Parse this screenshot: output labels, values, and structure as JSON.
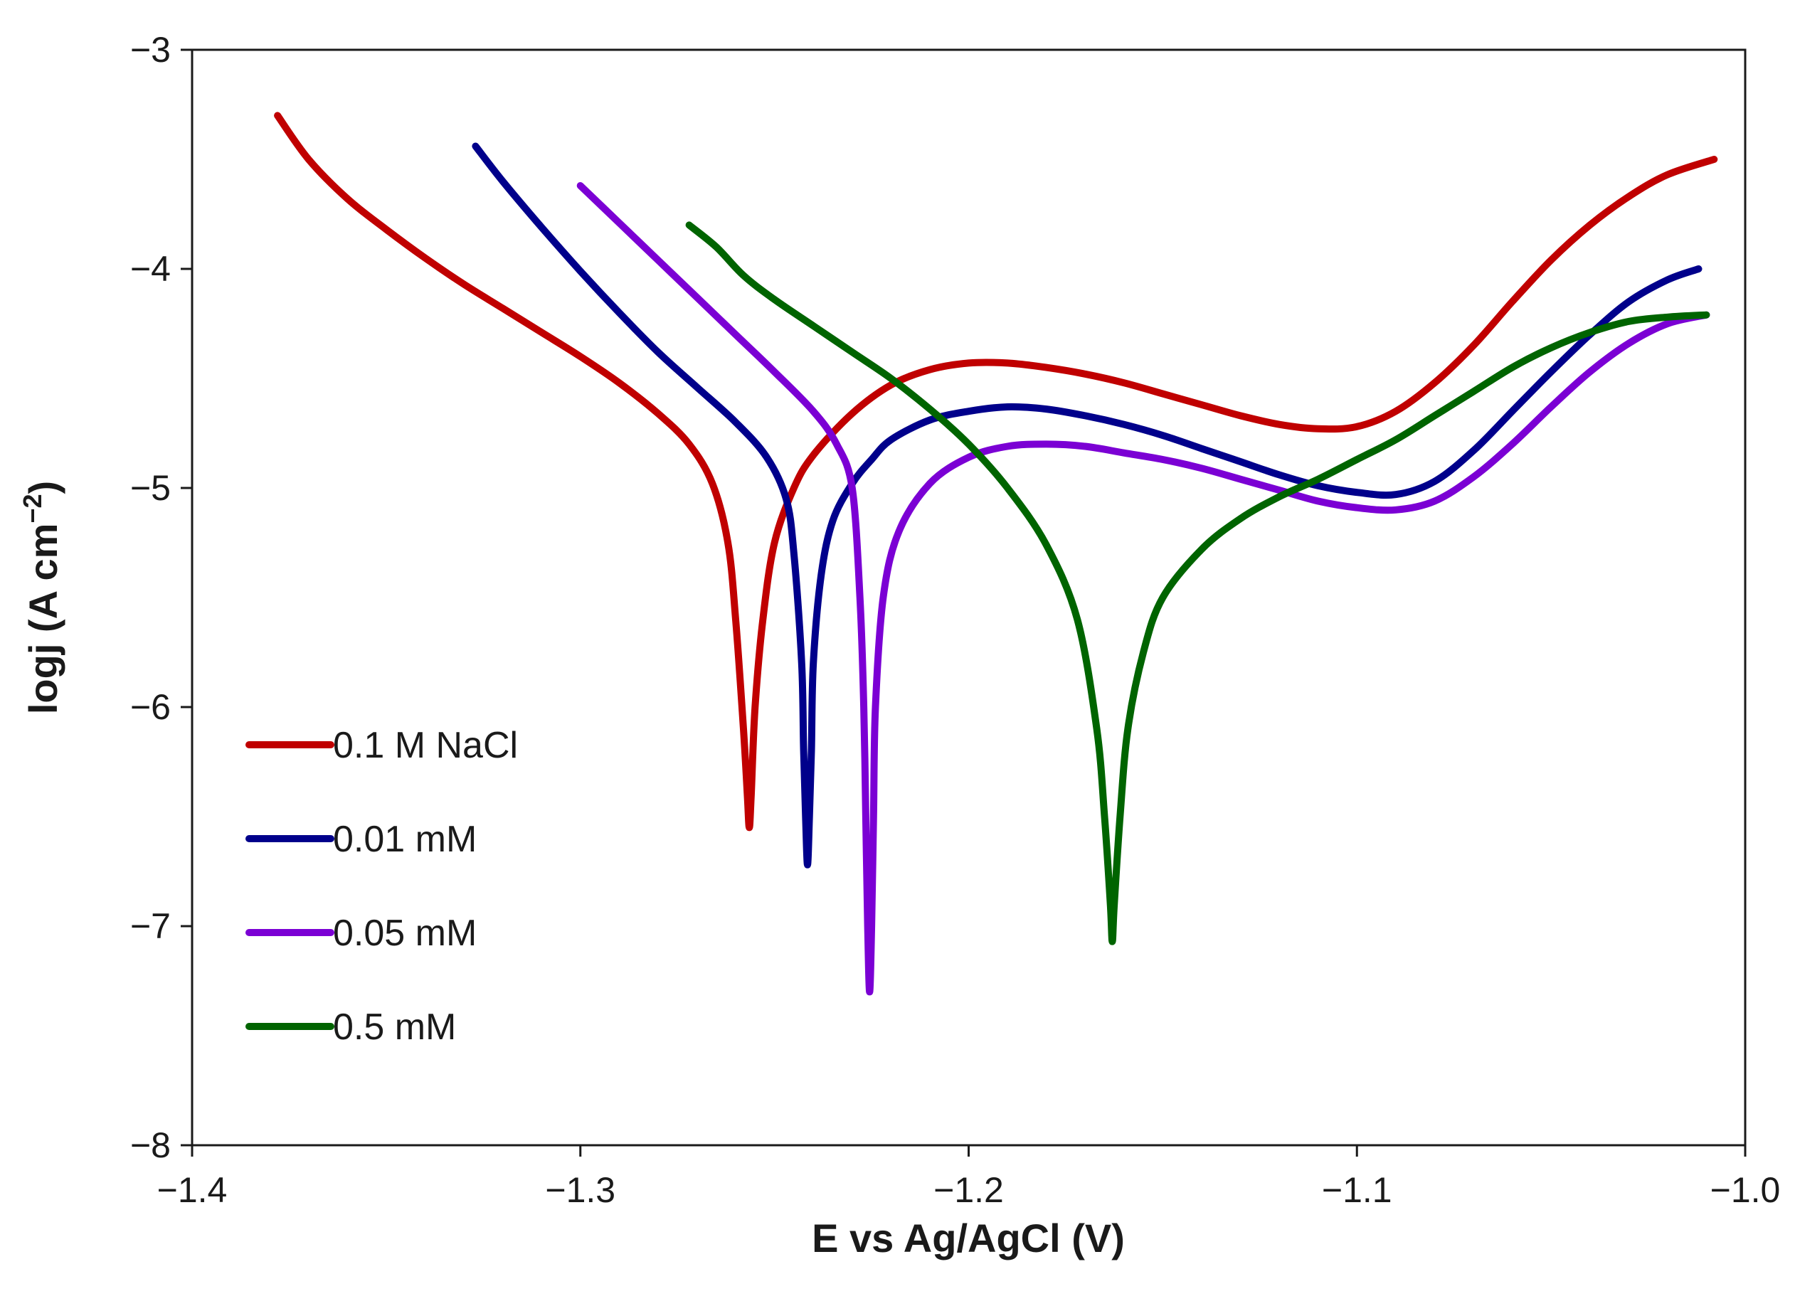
{
  "chart_data": {
    "type": "line",
    "title": "",
    "xlabel": "E vs Ag/AgCl  (V)",
    "ylabel_main": "logj (A cm",
    "ylabel_sup": "−2",
    "ylabel_close": ")",
    "xlim": [
      -1.4,
      -1.0
    ],
    "ylim": [
      -8,
      -3
    ],
    "x_ticks": [
      -1.4,
      -1.3,
      -1.2,
      -1.1,
      -1.0
    ],
    "x_tick_labels": [
      "−1.4",
      "−1.3",
      "−1.2",
      "−1.1",
      "−1.0"
    ],
    "y_ticks": [
      -3,
      -4,
      -5,
      -6,
      -7,
      -8
    ],
    "y_tick_labels": [
      "−3",
      "−4",
      "−5",
      "−6",
      "−7",
      "−8"
    ],
    "grid": false,
    "legend_position": "bottom-left",
    "series": [
      {
        "name": "0.1 M NaCl",
        "color": "#c00000",
        "points": [
          [
            -1.378,
            -3.3
          ],
          [
            -1.37,
            -3.5
          ],
          [
            -1.36,
            -3.68
          ],
          [
            -1.35,
            -3.82
          ],
          [
            -1.34,
            -3.95
          ],
          [
            -1.33,
            -4.07
          ],
          [
            -1.32,
            -4.18
          ],
          [
            -1.31,
            -4.29
          ],
          [
            -1.3,
            -4.4
          ],
          [
            -1.29,
            -4.52
          ],
          [
            -1.28,
            -4.66
          ],
          [
            -1.272,
            -4.8
          ],
          [
            -1.266,
            -4.98
          ],
          [
            -1.262,
            -5.25
          ],
          [
            -1.26,
            -5.6
          ],
          [
            -1.258,
            -6.1
          ],
          [
            -1.257,
            -6.4
          ],
          [
            -1.2565,
            -6.55
          ],
          [
            -1.256,
            -6.4
          ],
          [
            -1.255,
            -6.0
          ],
          [
            -1.253,
            -5.6
          ],
          [
            -1.25,
            -5.25
          ],
          [
            -1.245,
            -5.0
          ],
          [
            -1.24,
            -4.85
          ],
          [
            -1.23,
            -4.66
          ],
          [
            -1.22,
            -4.53
          ],
          [
            -1.21,
            -4.46
          ],
          [
            -1.2,
            -4.43
          ],
          [
            -1.19,
            -4.43
          ],
          [
            -1.18,
            -4.45
          ],
          [
            -1.17,
            -4.48
          ],
          [
            -1.16,
            -4.52
          ],
          [
            -1.15,
            -4.57
          ],
          [
            -1.14,
            -4.62
          ],
          [
            -1.13,
            -4.67
          ],
          [
            -1.12,
            -4.71
          ],
          [
            -1.11,
            -4.73
          ],
          [
            -1.1,
            -4.72
          ],
          [
            -1.09,
            -4.65
          ],
          [
            -1.08,
            -4.52
          ],
          [
            -1.07,
            -4.35
          ],
          [
            -1.06,
            -4.15
          ],
          [
            -1.05,
            -3.96
          ],
          [
            -1.04,
            -3.8
          ],
          [
            -1.03,
            -3.67
          ],
          [
            -1.02,
            -3.57
          ],
          [
            -1.008,
            -3.5
          ]
        ]
      },
      {
        "name": "0.01 mM",
        "color": "#00008b",
        "points": [
          [
            -1.327,
            -3.44
          ],
          [
            -1.32,
            -3.6
          ],
          [
            -1.31,
            -3.81
          ],
          [
            -1.3,
            -4.01
          ],
          [
            -1.29,
            -4.2
          ],
          [
            -1.28,
            -4.38
          ],
          [
            -1.27,
            -4.54
          ],
          [
            -1.26,
            -4.7
          ],
          [
            -1.252,
            -4.86
          ],
          [
            -1.247,
            -5.05
          ],
          [
            -1.245,
            -5.3
          ],
          [
            -1.243,
            -5.8
          ],
          [
            -1.2425,
            -6.2
          ],
          [
            -1.242,
            -6.5
          ],
          [
            -1.2415,
            -6.72
          ],
          [
            -1.241,
            -6.5
          ],
          [
            -1.2405,
            -6.2
          ],
          [
            -1.24,
            -5.8
          ],
          [
            -1.238,
            -5.4
          ],
          [
            -1.235,
            -5.15
          ],
          [
            -1.23,
            -4.98
          ],
          [
            -1.225,
            -4.87
          ],
          [
            -1.22,
            -4.78
          ],
          [
            -1.21,
            -4.69
          ],
          [
            -1.2,
            -4.65
          ],
          [
            -1.19,
            -4.63
          ],
          [
            -1.18,
            -4.64
          ],
          [
            -1.17,
            -4.67
          ],
          [
            -1.16,
            -4.71
          ],
          [
            -1.15,
            -4.76
          ],
          [
            -1.14,
            -4.82
          ],
          [
            -1.13,
            -4.88
          ],
          [
            -1.12,
            -4.94
          ],
          [
            -1.11,
            -4.99
          ],
          [
            -1.1,
            -5.02
          ],
          [
            -1.09,
            -5.03
          ],
          [
            -1.08,
            -4.97
          ],
          [
            -1.07,
            -4.83
          ],
          [
            -1.06,
            -4.65
          ],
          [
            -1.05,
            -4.47
          ],
          [
            -1.04,
            -4.3
          ],
          [
            -1.03,
            -4.15
          ],
          [
            -1.02,
            -4.05
          ],
          [
            -1.012,
            -4.0
          ]
        ]
      },
      {
        "name": "0.05 mM",
        "color": "#7b00d4",
        "points": [
          [
            -1.3,
            -3.62
          ],
          [
            -1.29,
            -3.79
          ],
          [
            -1.28,
            -3.96
          ],
          [
            -1.27,
            -4.13
          ],
          [
            -1.26,
            -4.3
          ],
          [
            -1.25,
            -4.47
          ],
          [
            -1.24,
            -4.65
          ],
          [
            -1.234,
            -4.8
          ],
          [
            -1.23,
            -5.0
          ],
          [
            -1.228,
            -5.5
          ],
          [
            -1.227,
            -6.0
          ],
          [
            -1.2265,
            -6.5
          ],
          [
            -1.226,
            -7.0
          ],
          [
            -1.2255,
            -7.3
          ],
          [
            -1.225,
            -7.0
          ],
          [
            -1.2245,
            -6.5
          ],
          [
            -1.224,
            -6.0
          ],
          [
            -1.222,
            -5.5
          ],
          [
            -1.218,
            -5.2
          ],
          [
            -1.21,
            -4.98
          ],
          [
            -1.2,
            -4.86
          ],
          [
            -1.19,
            -4.81
          ],
          [
            -1.18,
            -4.8
          ],
          [
            -1.17,
            -4.81
          ],
          [
            -1.16,
            -4.84
          ],
          [
            -1.15,
            -4.87
          ],
          [
            -1.14,
            -4.91
          ],
          [
            -1.13,
            -4.96
          ],
          [
            -1.12,
            -5.01
          ],
          [
            -1.11,
            -5.06
          ],
          [
            -1.1,
            -5.09
          ],
          [
            -1.09,
            -5.1
          ],
          [
            -1.08,
            -5.06
          ],
          [
            -1.07,
            -4.95
          ],
          [
            -1.06,
            -4.8
          ],
          [
            -1.05,
            -4.63
          ],
          [
            -1.04,
            -4.47
          ],
          [
            -1.03,
            -4.34
          ],
          [
            -1.02,
            -4.25
          ],
          [
            -1.01,
            -4.21
          ]
        ]
      },
      {
        "name": "0.5 mM",
        "color": "#006400",
        "points": [
          [
            -1.272,
            -3.8
          ],
          [
            -1.265,
            -3.9
          ],
          [
            -1.258,
            -4.03
          ],
          [
            -1.25,
            -4.14
          ],
          [
            -1.24,
            -4.26
          ],
          [
            -1.23,
            -4.38
          ],
          [
            -1.22,
            -4.5
          ],
          [
            -1.21,
            -4.64
          ],
          [
            -1.2,
            -4.8
          ],
          [
            -1.19,
            -5.0
          ],
          [
            -1.18,
            -5.26
          ],
          [
            -1.172,
            -5.6
          ],
          [
            -1.167,
            -6.1
          ],
          [
            -1.165,
            -6.5
          ],
          [
            -1.1635,
            -6.9
          ],
          [
            -1.163,
            -7.07
          ],
          [
            -1.1625,
            -6.9
          ],
          [
            -1.161,
            -6.5
          ],
          [
            -1.159,
            -6.1
          ],
          [
            -1.155,
            -5.75
          ],
          [
            -1.15,
            -5.5
          ],
          [
            -1.14,
            -5.28
          ],
          [
            -1.13,
            -5.14
          ],
          [
            -1.12,
            -5.04
          ],
          [
            -1.11,
            -4.96
          ],
          [
            -1.1,
            -4.87
          ],
          [
            -1.09,
            -4.78
          ],
          [
            -1.08,
            -4.67
          ],
          [
            -1.07,
            -4.56
          ],
          [
            -1.06,
            -4.45
          ],
          [
            -1.05,
            -4.36
          ],
          [
            -1.04,
            -4.29
          ],
          [
            -1.03,
            -4.24
          ],
          [
            -1.02,
            -4.22
          ],
          [
            -1.01,
            -4.21
          ]
        ]
      }
    ]
  }
}
